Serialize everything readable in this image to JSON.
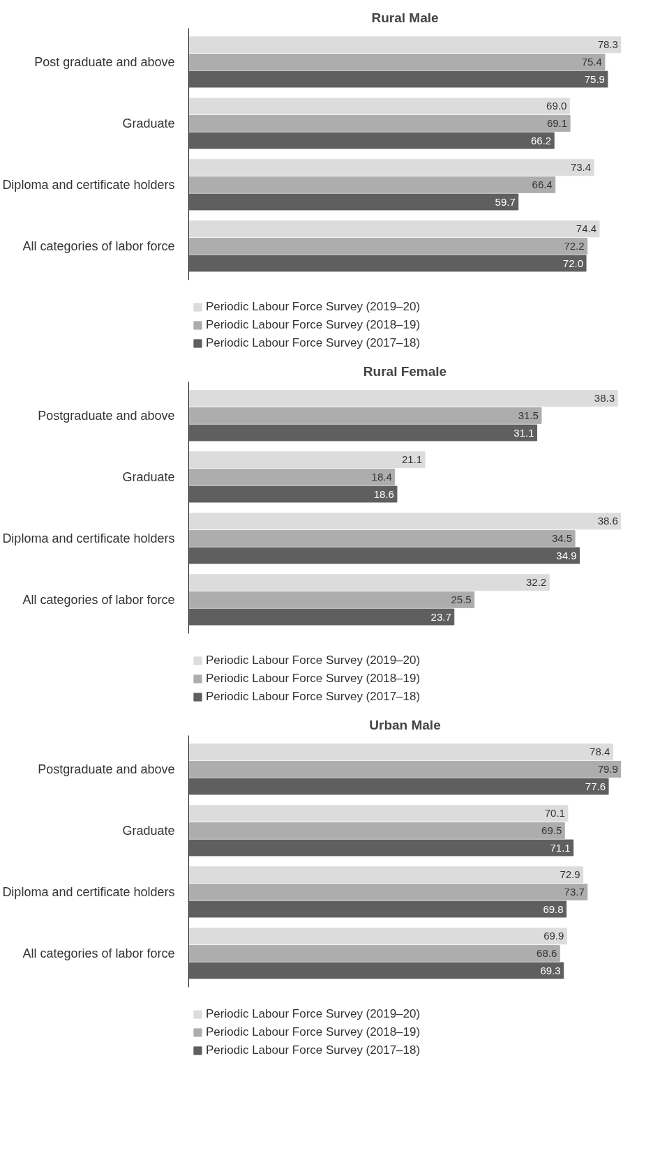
{
  "chart_data": [
    {
      "type": "bar",
      "orientation": "horizontal",
      "title": "Rural Male",
      "categories": [
        "Post graduate and above",
        "Graduate",
        "Diploma and certificate holders",
        "All categories of labor force"
      ],
      "data_labels": true,
      "legend": "bottom",
      "series": [
        {
          "name": "Periodic Labour Force Survey (2019–20)",
          "color": "#dcdcdc",
          "values": [
            78.3,
            69.0,
            73.4,
            74.4
          ],
          "value_labels": [
            "78.3",
            "69.0",
            "73.4",
            "74.4"
          ]
        },
        {
          "name": "Periodic Labour Force Survey (2018–19)",
          "color": "#adadad",
          "values": [
            75.4,
            69.1,
            66.4,
            72.2
          ]
        },
        {
          "name": "Periodic Labour Force Survey (2017–18)",
          "color": "#5f5f5f",
          "values": [
            75.9,
            66.2,
            59.7,
            72.0
          ],
          "value_labels": [
            "75.9",
            "66.2",
            "59.7",
            "72.0"
          ]
        }
      ]
    },
    {
      "type": "bar",
      "orientation": "horizontal",
      "title": "Rural Female",
      "categories": [
        "Postgraduate and above",
        "Graduate",
        "Diploma and certificate holders",
        "All categories of labor force"
      ],
      "data_labels": true,
      "legend": "bottom",
      "series": [
        {
          "name": "Periodic Labour Force Survey (2019–20)",
          "color": "#dcdcdc",
          "values": [
            38.3,
            21.1,
            38.6,
            32.2
          ]
        },
        {
          "name": "Periodic Labour Force Survey (2018–19)",
          "color": "#adadad",
          "values": [
            31.5,
            18.4,
            34.5,
            25.5
          ]
        },
        {
          "name": "Periodic Labour Force Survey (2017–18)",
          "color": "#5f5f5f",
          "values": [
            31.1,
            18.6,
            34.9,
            23.7
          ]
        }
      ]
    },
    {
      "type": "bar",
      "orientation": "horizontal",
      "title": "Urban Male",
      "categories": [
        "Postgraduate and above",
        "Graduate",
        "Diploma and certificate holders",
        "All categories of labor force"
      ],
      "data_labels": true,
      "legend": "bottom",
      "series": [
        {
          "name": "Periodic Labour Force Survey (2019–20)",
          "color": "#dcdcdc",
          "values": [
            78.4,
            70.1,
            72.9,
            69.9
          ]
        },
        {
          "name": "Periodic Labour Force Survey (2018–19)",
          "color": "#adadad",
          "values": [
            79.9,
            69.5,
            73.7,
            68.6
          ]
        },
        {
          "name": "Periodic Labour Force Survey (2017–18)",
          "color": "#5f5f5f",
          "values": [
            77.6,
            71.1,
            69.8,
            69.3
          ]
        }
      ]
    }
  ]
}
